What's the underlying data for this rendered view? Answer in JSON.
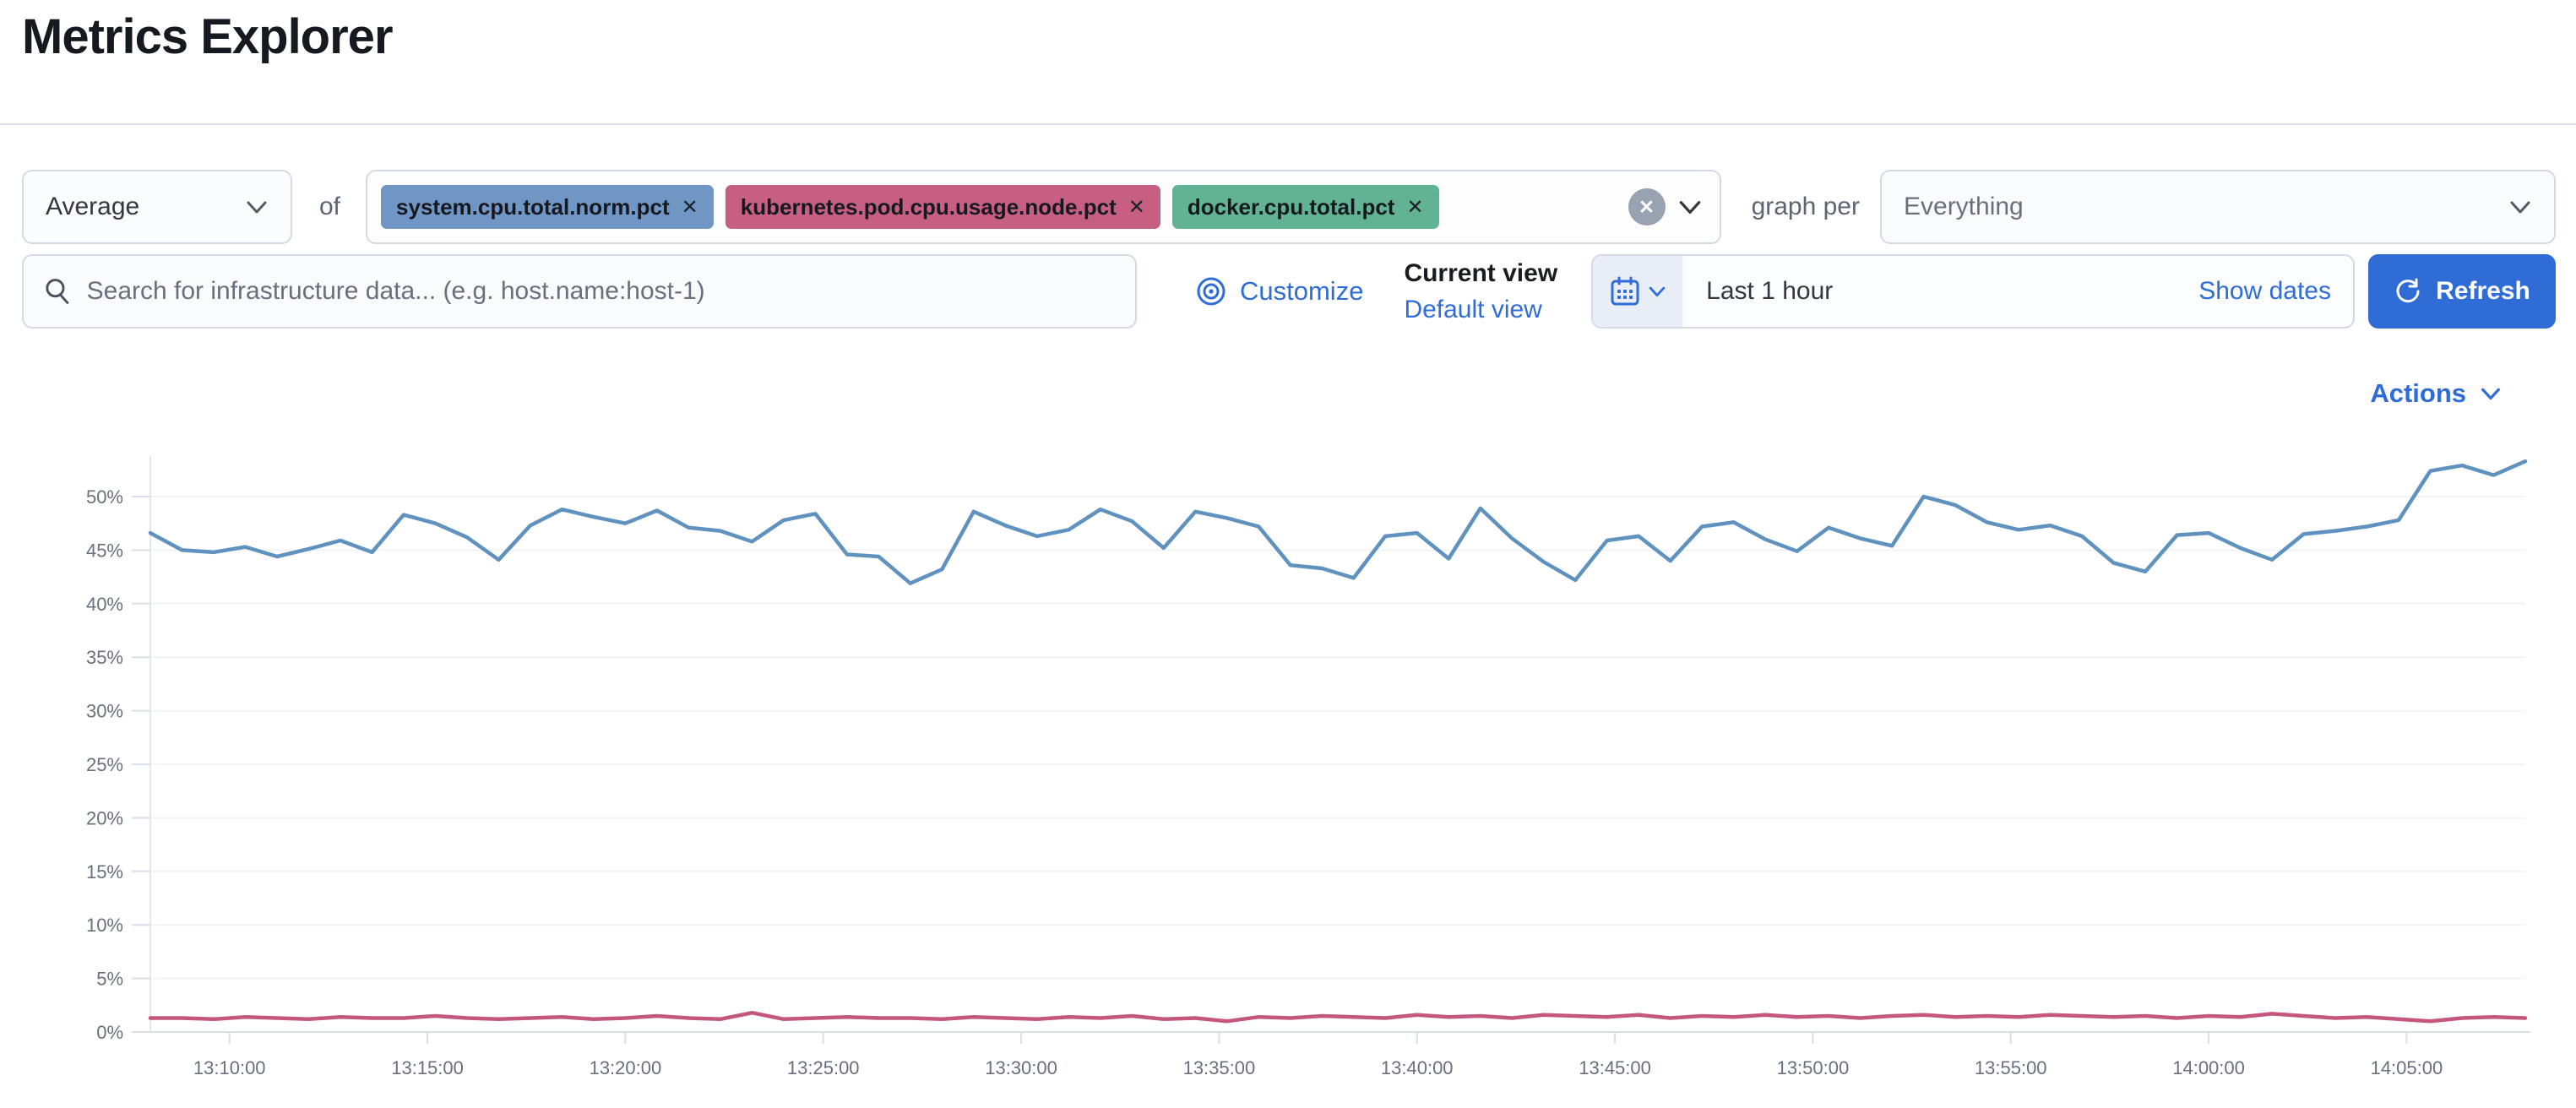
{
  "page": {
    "title": "Metrics Explorer"
  },
  "toolbar": {
    "aggregation": {
      "value": "Average"
    },
    "of_label": "of",
    "metrics": [
      {
        "label": "system.cpu.total.norm.pct",
        "remove_label": "✕",
        "color": "#7096C5"
      },
      {
        "label": "kubernetes.pod.cpu.usage.node.pct",
        "remove_label": "✕",
        "color": "#C65F82"
      },
      {
        "label": "docker.cpu.total.pct",
        "remove_label": "✕",
        "color": "#62B294"
      }
    ],
    "clear_label": "✕",
    "graph_per_label": "graph per",
    "group_by": {
      "value": "Everything"
    }
  },
  "searchbar": {
    "placeholder": "Search for infrastructure data... (e.g. host.name:host-1)"
  },
  "view_controls": {
    "customize_label": "Customize",
    "current_view_label": "Current view",
    "default_view_label": "Default view"
  },
  "datepicker": {
    "range_label": "Last 1 hour",
    "show_dates_label": "Show dates",
    "refresh_label": "Refresh"
  },
  "actions": {
    "label": "Actions"
  },
  "chart_data": {
    "type": "line",
    "x_start": "13:08:00",
    "x_end": "14:08:00",
    "x_tick_labels": [
      "13:10:00",
      "13:15:00",
      "13:20:00",
      "13:25:00",
      "13:30:00",
      "13:35:00",
      "13:40:00",
      "13:45:00",
      "13:50:00",
      "13:55:00",
      "14:00:00",
      "14:05:00"
    ],
    "x_tick_minutes_from_start": [
      2,
      7,
      12,
      17,
      22,
      27,
      32,
      37,
      42,
      47,
      52,
      57
    ],
    "y_tick_labels": [
      "0%",
      "5%",
      "10%",
      "15%",
      "20%",
      "25%",
      "30%",
      "35%",
      "40%",
      "45%",
      "50%"
    ],
    "y_tick_values": [
      0,
      5,
      10,
      15,
      20,
      25,
      30,
      35,
      40,
      45,
      50
    ],
    "ylim": [
      0,
      54.4
    ],
    "ylabel": "percent",
    "grid": "faint horizontal",
    "legend": "none",
    "series": [
      {
        "name": "system.cpu.total.norm.pct (Average)",
        "color": "#6092C0",
        "values": [
          46.6,
          45.0,
          44.8,
          45.3,
          44.4,
          45.1,
          45.9,
          44.8,
          48.3,
          47.5,
          46.2,
          44.1,
          47.3,
          48.8,
          48.1,
          47.5,
          48.7,
          47.1,
          46.8,
          45.8,
          47.8,
          48.4,
          44.6,
          44.4,
          41.9,
          43.2,
          48.6,
          47.3,
          46.3,
          46.9,
          48.8,
          47.7,
          45.2,
          48.6,
          48.0,
          47.2,
          43.6,
          43.3,
          42.4,
          46.3,
          46.6,
          44.2,
          48.9,
          46.1,
          43.9,
          42.2,
          45.9,
          46.3,
          44.0,
          47.2,
          47.6,
          46.0,
          44.9,
          47.1,
          46.1,
          45.4,
          50.0,
          49.2,
          47.6,
          46.9,
          47.3,
          46.3,
          43.8,
          43.0,
          46.4,
          46.6,
          45.2,
          44.1,
          46.5,
          46.8,
          47.2,
          47.8,
          52.4,
          52.9,
          52.0,
          53.3
        ]
      },
      {
        "name": "kubernetes.pod.cpu.usage.node.pct (Average)",
        "color": "#C5577D",
        "values": [
          1.3,
          1.3,
          1.2,
          1.4,
          1.3,
          1.2,
          1.4,
          1.3,
          1.3,
          1.5,
          1.3,
          1.2,
          1.3,
          1.4,
          1.2,
          1.3,
          1.5,
          1.3,
          1.2,
          1.8,
          1.2,
          1.3,
          1.4,
          1.3,
          1.3,
          1.2,
          1.4,
          1.3,
          1.2,
          1.4,
          1.3,
          1.5,
          1.2,
          1.3,
          1.0,
          1.4,
          1.3,
          1.5,
          1.4,
          1.3,
          1.6,
          1.4,
          1.5,
          1.3,
          1.6,
          1.5,
          1.4,
          1.6,
          1.3,
          1.5,
          1.4,
          1.6,
          1.4,
          1.5,
          1.3,
          1.5,
          1.6,
          1.4,
          1.5,
          1.4,
          1.6,
          1.5,
          1.4,
          1.5,
          1.3,
          1.5,
          1.4,
          1.7,
          1.5,
          1.3,
          1.4,
          1.2,
          1.0,
          1.3,
          1.4,
          1.3
        ]
      }
    ]
  }
}
